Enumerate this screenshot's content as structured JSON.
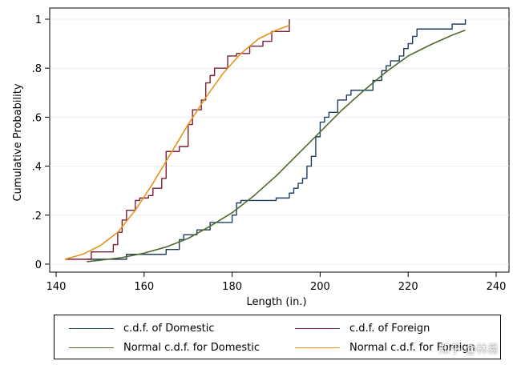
{
  "chart_data": {
    "type": "line",
    "xlabel": "Length (in.)",
    "ylabel": "Cumulative Probability",
    "xlim": [
      140,
      240
    ],
    "ylim": [
      0,
      1
    ],
    "xticks": [
      140,
      160,
      180,
      200,
      220,
      240
    ],
    "yticks": [
      0,
      0.2,
      0.4,
      0.6,
      0.8,
      1
    ],
    "xtick_labels": [
      "140",
      "160",
      "180",
      "200",
      "220",
      "240"
    ],
    "ytick_labels": [
      "0",
      ".2",
      ".4",
      ".6",
      ".8",
      "1"
    ],
    "grid": "horizontal",
    "legend_position": "bottom",
    "series": [
      {
        "name": "c.d.f. of  Domestic",
        "kind": "step",
        "color": "#1f3f60",
        "x": [
          147,
          156,
          165,
          168,
          169,
          172,
          175,
          180,
          181,
          182,
          190,
          193,
          194,
          195,
          196,
          197,
          198,
          199,
          200,
          201,
          202,
          204,
          206,
          207,
          212,
          214,
          215,
          216,
          218,
          219,
          220,
          221,
          222,
          230,
          233
        ],
        "y": [
          0.02,
          0.04,
          0.06,
          0.1,
          0.12,
          0.14,
          0.17,
          0.2,
          0.25,
          0.26,
          0.27,
          0.29,
          0.31,
          0.33,
          0.35,
          0.4,
          0.44,
          0.52,
          0.58,
          0.6,
          0.62,
          0.67,
          0.69,
          0.71,
          0.75,
          0.79,
          0.81,
          0.83,
          0.85,
          0.88,
          0.9,
          0.93,
          0.96,
          0.98,
          1.0
        ]
      },
      {
        "name": "c.d.f. of  Foreign",
        "kind": "step",
        "color": "#7b1f32",
        "x": [
          142,
          148,
          153,
          154,
          155,
          156,
          158,
          159,
          161,
          162,
          164,
          165,
          168,
          170,
          171,
          173,
          174,
          175,
          176,
          179,
          181,
          184,
          187,
          189,
          193
        ],
        "y": [
          0.02,
          0.05,
          0.08,
          0.13,
          0.18,
          0.22,
          0.26,
          0.27,
          0.28,
          0.31,
          0.35,
          0.46,
          0.48,
          0.57,
          0.63,
          0.67,
          0.74,
          0.77,
          0.8,
          0.85,
          0.86,
          0.89,
          0.91,
          0.95,
          1.0
        ]
      },
      {
        "name": "Normal c.d.f. for Domestic",
        "kind": "line",
        "color": "#4e6b2c",
        "x": [
          147,
          150,
          155,
          160,
          165,
          170,
          175,
          180,
          185,
          190,
          195,
          200,
          205,
          210,
          215,
          220,
          225,
          230,
          233
        ],
        "y": [
          0.01,
          0.016,
          0.027,
          0.045,
          0.07,
          0.105,
          0.155,
          0.21,
          0.28,
          0.36,
          0.45,
          0.54,
          0.63,
          0.71,
          0.785,
          0.85,
          0.895,
          0.935,
          0.955
        ]
      },
      {
        "name": "Normal c.d.f. for Foreign",
        "kind": "line",
        "color": "#e8931e",
        "x": [
          142,
          146,
          150,
          154,
          158,
          162,
          166,
          170,
          174,
          178,
          182,
          186,
          190,
          193
        ],
        "y": [
          0.02,
          0.04,
          0.075,
          0.13,
          0.22,
          0.33,
          0.45,
          0.57,
          0.68,
          0.78,
          0.86,
          0.92,
          0.955,
          0.975
        ]
      }
    ]
  },
  "legend": {
    "items": [
      {
        "label": "c.d.f. of  Domestic",
        "color": "#1f3f60"
      },
      {
        "label": "c.d.f. of  Foreign",
        "color": "#7b1f32"
      },
      {
        "label": "Normal c.d.f. for Domestic",
        "color": "#4e6b2c"
      },
      {
        "label": "Normal c.d.f. for Foreign",
        "color": "#e8931e"
      }
    ]
  },
  "watermark": "知乎 @林易"
}
